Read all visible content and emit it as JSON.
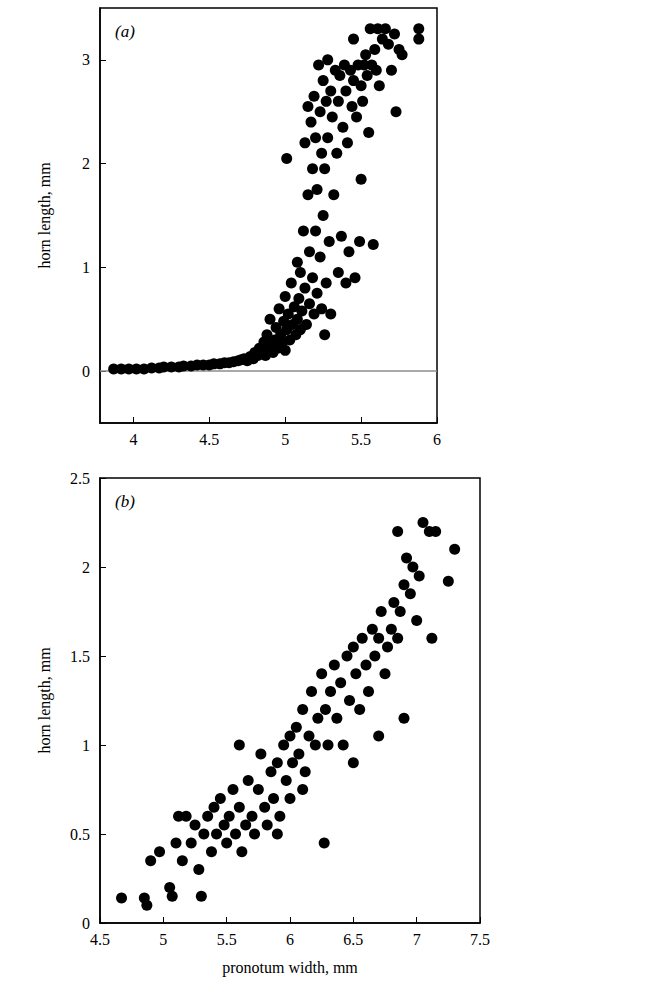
{
  "chart_data": [
    {
      "type": "scatter",
      "title": "(a)",
      "ylabel": "horn length, mm",
      "xlim": [
        3.78,
        6
      ],
      "xticks": [
        4,
        4.5,
        5,
        5.5,
        6
      ],
      "ylim": [
        -0.5,
        3.5
      ],
      "yticks": [
        0,
        1,
        2,
        3
      ],
      "hline": 0,
      "grid": false,
      "color": "#000000",
      "marker": "circle",
      "x": [
        3.87,
        3.92,
        3.97,
        4.02,
        4.07,
        4.12,
        4.17,
        4.2,
        4.25,
        4.3,
        4.33,
        4.38,
        4.42,
        4.46,
        4.5,
        4.53,
        4.57,
        4.6,
        4.63,
        4.66,
        4.69,
        4.71,
        4.73,
        4.75,
        4.77,
        4.79,
        4.8,
        4.82,
        4.83,
        4.85,
        4.86,
        4.87,
        4.88,
        4.9,
        4.9,
        4.92,
        4.93,
        4.94,
        4.95,
        4.96,
        4.97,
        4.98,
        4.99,
        5.0,
        5.0,
        5.01,
        5.01,
        5.02,
        5.03,
        5.04,
        5.05,
        5.06,
        5.07,
        5.08,
        5.08,
        5.09,
        5.1,
        5.1,
        5.11,
        5.12,
        5.13,
        5.13,
        5.14,
        5.15,
        5.15,
        5.16,
        5.16,
        5.17,
        5.18,
        5.18,
        5.19,
        5.19,
        5.2,
        5.2,
        5.21,
        5.21,
        5.22,
        5.23,
        5.23,
        5.24,
        5.24,
        5.25,
        5.25,
        5.26,
        5.26,
        5.27,
        5.27,
        5.28,
        5.28,
        5.29,
        5.3,
        5.3,
        5.31,
        5.32,
        5.33,
        5.34,
        5.35,
        5.35,
        5.36,
        5.37,
        5.38,
        5.39,
        5.4,
        5.4,
        5.41,
        5.42,
        5.43,
        5.44,
        5.45,
        5.45,
        5.46,
        5.47,
        5.48,
        5.49,
        5.5,
        5.5,
        5.51,
        5.52,
        5.53,
        5.54,
        5.55,
        5.56,
        5.57,
        5.58,
        5.59,
        5.6,
        5.61,
        5.62,
        5.64,
        5.66,
        5.68,
        5.7,
        5.72,
        5.73,
        5.75,
        5.77,
        5.88,
        5.88
      ],
      "values": [
        0.02,
        0.02,
        0.02,
        0.02,
        0.02,
        0.03,
        0.03,
        0.04,
        0.04,
        0.04,
        0.05,
        0.05,
        0.06,
        0.06,
        0.06,
        0.07,
        0.07,
        0.08,
        0.08,
        0.09,
        0.1,
        0.11,
        0.12,
        0.1,
        0.14,
        0.12,
        0.18,
        0.15,
        0.22,
        0.2,
        0.28,
        0.15,
        0.35,
        0.25,
        0.5,
        0.18,
        0.3,
        0.42,
        0.22,
        0.6,
        0.35,
        0.28,
        0.48,
        0.2,
        0.72,
        0.4,
        2.05,
        0.55,
        0.3,
        0.85,
        0.45,
        0.62,
        0.35,
        0.5,
        1.05,
        0.7,
        0.4,
        0.95,
        0.58,
        1.35,
        0.8,
        2.2,
        0.45,
        1.7,
        2.55,
        0.65,
        1.15,
        2.4,
        0.9,
        1.95,
        0.55,
        2.65,
        1.35,
        2.25,
        0.75,
        1.75,
        2.95,
        1.1,
        2.5,
        0.6,
        2.1,
        1.5,
        2.8,
        0.35,
        1.95,
        0.85,
        2.6,
        2.25,
        3.0,
        1.25,
        2.7,
        0.55,
        2.45,
        1.7,
        2.9,
        2.1,
        0.95,
        2.6,
        2.85,
        1.3,
        2.35,
        2.95,
        0.85,
        2.7,
        2.2,
        1.15,
        2.9,
        2.55,
        2.8,
        3.2,
        0.9,
        2.45,
        2.95,
        1.25,
        2.75,
        1.85,
        2.6,
        2.95,
        3.05,
        2.85,
        2.3,
        3.3,
        2.95,
        1.22,
        3.1,
        2.9,
        3.3,
        2.75,
        3.2,
        3.3,
        3.15,
        2.9,
        3.25,
        2.5,
        3.1,
        3.05,
        3.3,
        3.2
      ]
    },
    {
      "type": "scatter",
      "title": "(b)",
      "xlabel": "pronotum width, mm",
      "ylabel": "horn length, mm",
      "xlim": [
        4.5,
        7.5
      ],
      "xticks": [
        4.5,
        5,
        5.5,
        6,
        6.5,
        7,
        7.5
      ],
      "ylim": [
        0,
        2.5
      ],
      "yticks": [
        0,
        0.5,
        1,
        1.5,
        2,
        2.5
      ],
      "grid": false,
      "color": "#000000",
      "marker": "circle",
      "x": [
        4.67,
        4.85,
        4.87,
        4.9,
        4.97,
        5.05,
        5.07,
        5.1,
        5.12,
        5.15,
        5.18,
        5.22,
        5.25,
        5.28,
        5.3,
        5.32,
        5.35,
        5.38,
        5.4,
        5.42,
        5.45,
        5.48,
        5.5,
        5.52,
        5.55,
        5.57,
        5.6,
        5.62,
        5.65,
        5.67,
        5.7,
        5.72,
        5.75,
        5.77,
        5.8,
        5.82,
        5.85,
        5.87,
        5.9,
        5.92,
        5.95,
        5.97,
        6.0,
        6.0,
        6.02,
        6.05,
        6.07,
        6.1,
        6.12,
        6.15,
        6.17,
        6.2,
        6.22,
        6.25,
        6.27,
        6.28,
        6.3,
        6.32,
        6.35,
        6.37,
        6.4,
        6.42,
        6.45,
        6.47,
        6.5,
        6.5,
        6.52,
        6.55,
        6.57,
        6.6,
        6.62,
        6.65,
        6.67,
        6.7,
        6.7,
        6.72,
        6.75,
        6.77,
        6.8,
        6.82,
        6.85,
        6.87,
        6.9,
        6.9,
        6.92,
        6.95,
        6.97,
        7.0,
        7.02,
        7.05,
        7.1,
        7.12,
        7.15,
        7.25,
        7.3,
        6.85,
        5.6,
        6.1,
        5.9
      ],
      "values": [
        0.14,
        0.14,
        0.1,
        0.35,
        0.4,
        0.2,
        0.15,
        0.45,
        0.6,
        0.35,
        0.6,
        0.45,
        0.55,
        0.3,
        0.15,
        0.5,
        0.6,
        0.4,
        0.65,
        0.5,
        0.7,
        0.55,
        0.45,
        0.6,
        0.75,
        0.5,
        0.65,
        0.4,
        0.55,
        0.8,
        0.6,
        0.5,
        0.75,
        0.95,
        0.65,
        0.55,
        0.85,
        0.7,
        0.9,
        0.6,
        1.0,
        0.8,
        1.05,
        0.7,
        0.9,
        1.1,
        0.95,
        1.2,
        0.85,
        1.05,
        1.3,
        1.0,
        1.15,
        1.4,
        0.45,
        1.2,
        1.0,
        1.3,
        1.45,
        1.15,
        1.35,
        1.0,
        1.5,
        1.25,
        0.9,
        1.55,
        1.4,
        1.2,
        1.6,
        1.45,
        1.3,
        1.65,
        1.5,
        1.05,
        1.6,
        1.75,
        1.4,
        1.55,
        1.65,
        1.8,
        1.6,
        1.75,
        1.15,
        1.9,
        2.05,
        1.85,
        2.0,
        1.7,
        1.95,
        2.25,
        2.2,
        1.6,
        2.2,
        1.92,
        2.1,
        2.2,
        1.0,
        0.75,
        0.5
      ]
    }
  ]
}
